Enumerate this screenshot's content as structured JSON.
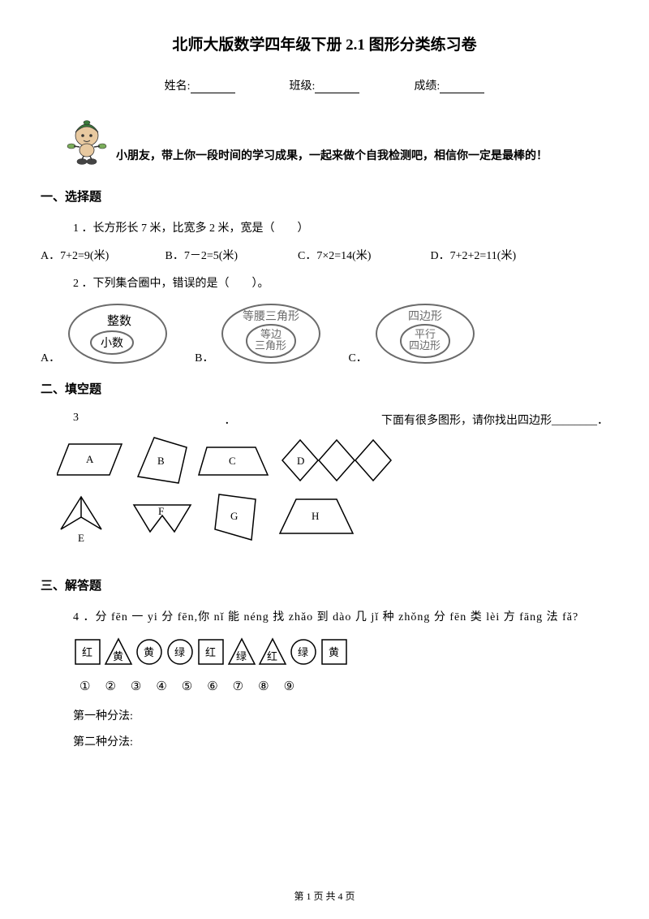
{
  "page": {
    "title": "北师大版数学四年级下册 2.1 图形分类练习卷",
    "fields": {
      "name_label": "姓名:",
      "class_label": "班级:",
      "score_label": "成绩:"
    },
    "intro": "小朋友，带上你一段时间的学习成果，一起来做个自我检测吧，相信你一定是最棒的！",
    "footer": "第 1 页 共 4 页"
  },
  "sections": {
    "s1": "一、选择题",
    "s2": "二、填空题",
    "s3": "三、解答题"
  },
  "q1": {
    "text": "1 ．长方形长 7 米，比宽多 2 米，宽是（　　）",
    "optA": "A．7+2=9(米)",
    "optB": "B．7－2=5(米)",
    "optC": "C．7×2=14(米)",
    "optD": "D．7+2+2=11(米)"
  },
  "q2": {
    "text": "2 ．下列集合圈中，错误的是（　　）。",
    "labelA": "A．",
    "labelB": "B．",
    "labelC": "C．",
    "vennA": {
      "outer": "整数",
      "inner": "小数"
    },
    "vennB": {
      "outer": "等腰三角形",
      "inner1": "等边",
      "inner2": "三角形"
    },
    "vennC": {
      "outer": "四边形",
      "inner1": "平行",
      "inner2": "四边形"
    }
  },
  "q3": {
    "num": "3",
    "dot": "．",
    "text": "下面有很多图形，请你找出四边形________．",
    "labels": {
      "A": "A",
      "B": "B",
      "C": "C",
      "D": "D",
      "E": "E",
      "F": "F",
      "G": "G",
      "H": "H"
    }
  },
  "q4": {
    "text": "4 ．分 fēn 一 yi 分 fēn,你 nǐ 能 néng 找 zhǎo 到 dào 几 jǐ 种 zhǒng 分 fēn 类 lèi 方 fāng 法 fǎ?",
    "shapes": [
      {
        "type": "square",
        "label": "红"
      },
      {
        "type": "triangle",
        "label": "黄"
      },
      {
        "type": "circle",
        "label": "黄"
      },
      {
        "type": "circle",
        "label": "绿"
      },
      {
        "type": "square",
        "label": "红"
      },
      {
        "type": "triangle",
        "label": "绿"
      },
      {
        "type": "triangle",
        "label": "红"
      },
      {
        "type": "circle",
        "label": "绿"
      },
      {
        "type": "square",
        "label": "黄"
      }
    ],
    "nums": "①②③④⑤⑥⑦⑧⑨",
    "method1": "第一种分法:",
    "method2": "第二种分法:"
  },
  "style": {
    "stroke": "#000000",
    "grey_stroke": "#6b6b6b",
    "bg": "#ffffff",
    "mascot_green": "#3a7a3a",
    "mascot_skin": "#e8c9a0"
  }
}
